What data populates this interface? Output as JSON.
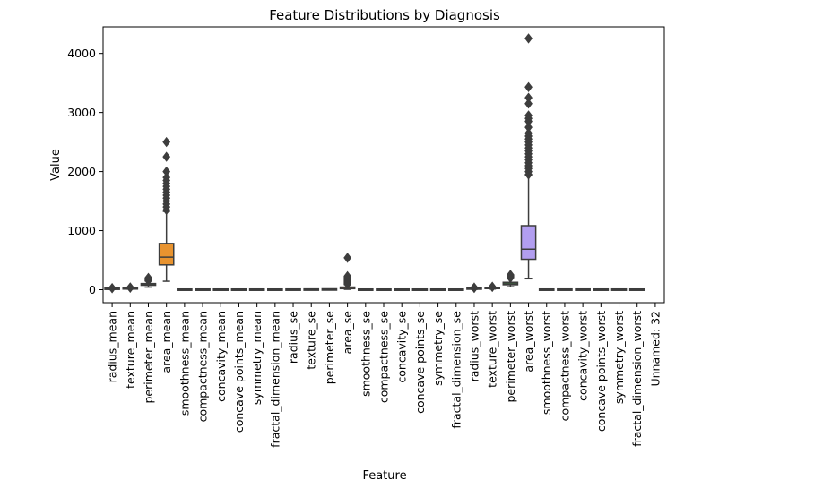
{
  "chart_data": {
    "type": "box",
    "title": "Feature Distributions by Diagnosis",
    "xlabel": "Feature",
    "ylabel": "Value",
    "ylim": [
      -220,
      4450
    ],
    "yticks": [
      0,
      1000,
      2000,
      3000,
      4000
    ],
    "grid": false,
    "legend": "none",
    "categories": [
      "radius_mean",
      "texture_mean",
      "perimeter_mean",
      "area_mean",
      "smoothness_mean",
      "compactness_mean",
      "concavity_mean",
      "concave points_mean",
      "symmetry_mean",
      "fractal_dimension_mean",
      "radius_se",
      "texture_se",
      "perimeter_se",
      "area_se",
      "smoothness_se",
      "compactness_se",
      "concavity_se",
      "concave points_se",
      "symmetry_se",
      "fractal_dimension_se",
      "radius_worst",
      "texture_worst",
      "perimeter_worst",
      "area_worst",
      "smoothness_worst",
      "compactness_worst",
      "concavity_worst",
      "concave points_worst",
      "symmetry_worst",
      "fractal_dimension_worst",
      "Unnamed: 32"
    ],
    "boxes": [
      {
        "min": 7,
        "q1": 12,
        "median": 13,
        "q3": 16,
        "max": 22,
        "outliers": [
          25,
          28
        ],
        "color": "#3f6fb5"
      },
      {
        "min": 10,
        "q1": 16,
        "median": 19,
        "q3": 22,
        "max": 30,
        "outliers": [
          33,
          39
        ],
        "color": "#e1812c"
      },
      {
        "min": 44,
        "q1": 75,
        "median": 86,
        "q3": 104,
        "max": 147,
        "outliers": [
          155,
          170,
          185,
          200
        ],
        "color": "#3a923a"
      },
      {
        "min": 143,
        "q1": 420,
        "median": 551,
        "q3": 783,
        "max": 1326,
        "outliers": [
          1350,
          1400,
          1450,
          1500,
          1550,
          1600,
          1650,
          1700,
          1750,
          1800,
          1850,
          1900,
          2000,
          2250,
          2500
        ],
        "color": "#e8932f"
      },
      {
        "min": 0.05,
        "q1": 0.09,
        "median": 0.1,
        "q3": 0.1,
        "max": 0.13,
        "outliers": [],
        "color": "#9372b2"
      },
      {
        "min": 0.02,
        "q1": 0.06,
        "median": 0.09,
        "q3": 0.13,
        "max": 0.23,
        "outliers": [],
        "color": "#845b53"
      },
      {
        "min": 0,
        "q1": 0.03,
        "median": 0.06,
        "q3": 0.13,
        "max": 0.28,
        "outliers": [],
        "color": "#d684bd"
      },
      {
        "min": 0,
        "q1": 0.02,
        "median": 0.03,
        "q3": 0.07,
        "max": 0.15,
        "outliers": [],
        "color": "#7f7f7f"
      },
      {
        "min": 0.11,
        "q1": 0.16,
        "median": 0.18,
        "q3": 0.2,
        "max": 0.25,
        "outliers": [],
        "color": "#a9aa35"
      },
      {
        "min": 0.05,
        "q1": 0.06,
        "median": 0.06,
        "q3": 0.07,
        "max": 0.08,
        "outliers": [],
        "color": "#2ea8b7"
      },
      {
        "min": 0.11,
        "q1": 0.23,
        "median": 0.32,
        "q3": 0.48,
        "max": 0.85,
        "outliers": [],
        "color": "#3f6fb5"
      },
      {
        "min": 0.36,
        "q1": 0.83,
        "median": 1.1,
        "q3": 1.47,
        "max": 2.4,
        "outliers": [],
        "color": "#e1812c"
      },
      {
        "min": 0.76,
        "q1": 1.6,
        "median": 2.3,
        "q3": 3.4,
        "max": 6,
        "outliers": [],
        "color": "#3a923a"
      },
      {
        "min": 6.8,
        "q1": 17.8,
        "median": 24.5,
        "q3": 45,
        "max": 86,
        "outliers": [
          95,
          110,
          125,
          140,
          155,
          170,
          185,
          200,
          215,
          230,
          540
        ],
        "color": "#e1812c"
      },
      {
        "min": 0,
        "q1": 0,
        "median": 0.01,
        "q3": 0.01,
        "max": 0.02,
        "outliers": [],
        "color": "#9372b2"
      },
      {
        "min": 0,
        "q1": 0.01,
        "median": 0.02,
        "q3": 0.03,
        "max": 0.06,
        "outliers": [],
        "color": "#845b53"
      },
      {
        "min": 0,
        "q1": 0.02,
        "median": 0.03,
        "q3": 0.04,
        "max": 0.08,
        "outliers": [],
        "color": "#d684bd"
      },
      {
        "min": 0,
        "q1": 0.01,
        "median": 0.01,
        "q3": 0.01,
        "max": 0.02,
        "outliers": [],
        "color": "#7f7f7f"
      },
      {
        "min": 0.01,
        "q1": 0.02,
        "median": 0.02,
        "q3": 0.02,
        "max": 0.04,
        "outliers": [],
        "color": "#a9aa35"
      },
      {
        "min": 0,
        "q1": 0,
        "median": 0,
        "q3": 0,
        "max": 0.01,
        "outliers": [],
        "color": "#2ea8b7"
      },
      {
        "min": 8,
        "q1": 13,
        "median": 15,
        "q3": 19,
        "max": 27,
        "outliers": [
          30,
          33,
          36
        ],
        "color": "#3f6fb5"
      },
      {
        "min": 12,
        "q1": 21,
        "median": 25,
        "q3": 30,
        "max": 42,
        "outliers": [
          47,
          50
        ],
        "color": "#e1812c"
      },
      {
        "min": 50,
        "q1": 84,
        "median": 98,
        "q3": 125,
        "max": 187,
        "outliers": [
          200,
          215,
          230,
          245,
          251
        ],
        "color": "#3a923a"
      },
      {
        "min": 185,
        "q1": 515,
        "median": 686,
        "q3": 1084,
        "max": 1937,
        "outliers": [
          1950,
          2000,
          2050,
          2100,
          2150,
          2200,
          2250,
          2300,
          2350,
          2400,
          2450,
          2500,
          2550,
          2600,
          2650,
          2750,
          2850,
          2900,
          2950,
          3150,
          3250,
          3430,
          4254
        ],
        "color": "#b29ef0"
      },
      {
        "min": 0.07,
        "q1": 0.12,
        "median": 0.13,
        "q3": 0.15,
        "max": 0.19,
        "outliers": [],
        "color": "#9372b2"
      },
      {
        "min": 0.03,
        "q1": 0.15,
        "median": 0.21,
        "q3": 0.34,
        "max": 0.62,
        "outliers": [],
        "color": "#845b53"
      },
      {
        "min": 0,
        "q1": 0.11,
        "median": 0.23,
        "q3": 0.38,
        "max": 0.8,
        "outliers": [],
        "color": "#d684bd"
      },
      {
        "min": 0,
        "q1": 0.06,
        "median": 0.1,
        "q3": 0.16,
        "max": 0.29,
        "outliers": [],
        "color": "#7f7f7f"
      },
      {
        "min": 0.16,
        "q1": 0.25,
        "median": 0.28,
        "q3": 0.32,
        "max": 0.42,
        "outliers": [],
        "color": "#a9aa35"
      },
      {
        "min": 0.06,
        "q1": 0.07,
        "median": 0.08,
        "q3": 0.09,
        "max": 0.12,
        "outliers": [],
        "color": "#2ea8b7"
      },
      {
        "empty": true
      }
    ]
  }
}
